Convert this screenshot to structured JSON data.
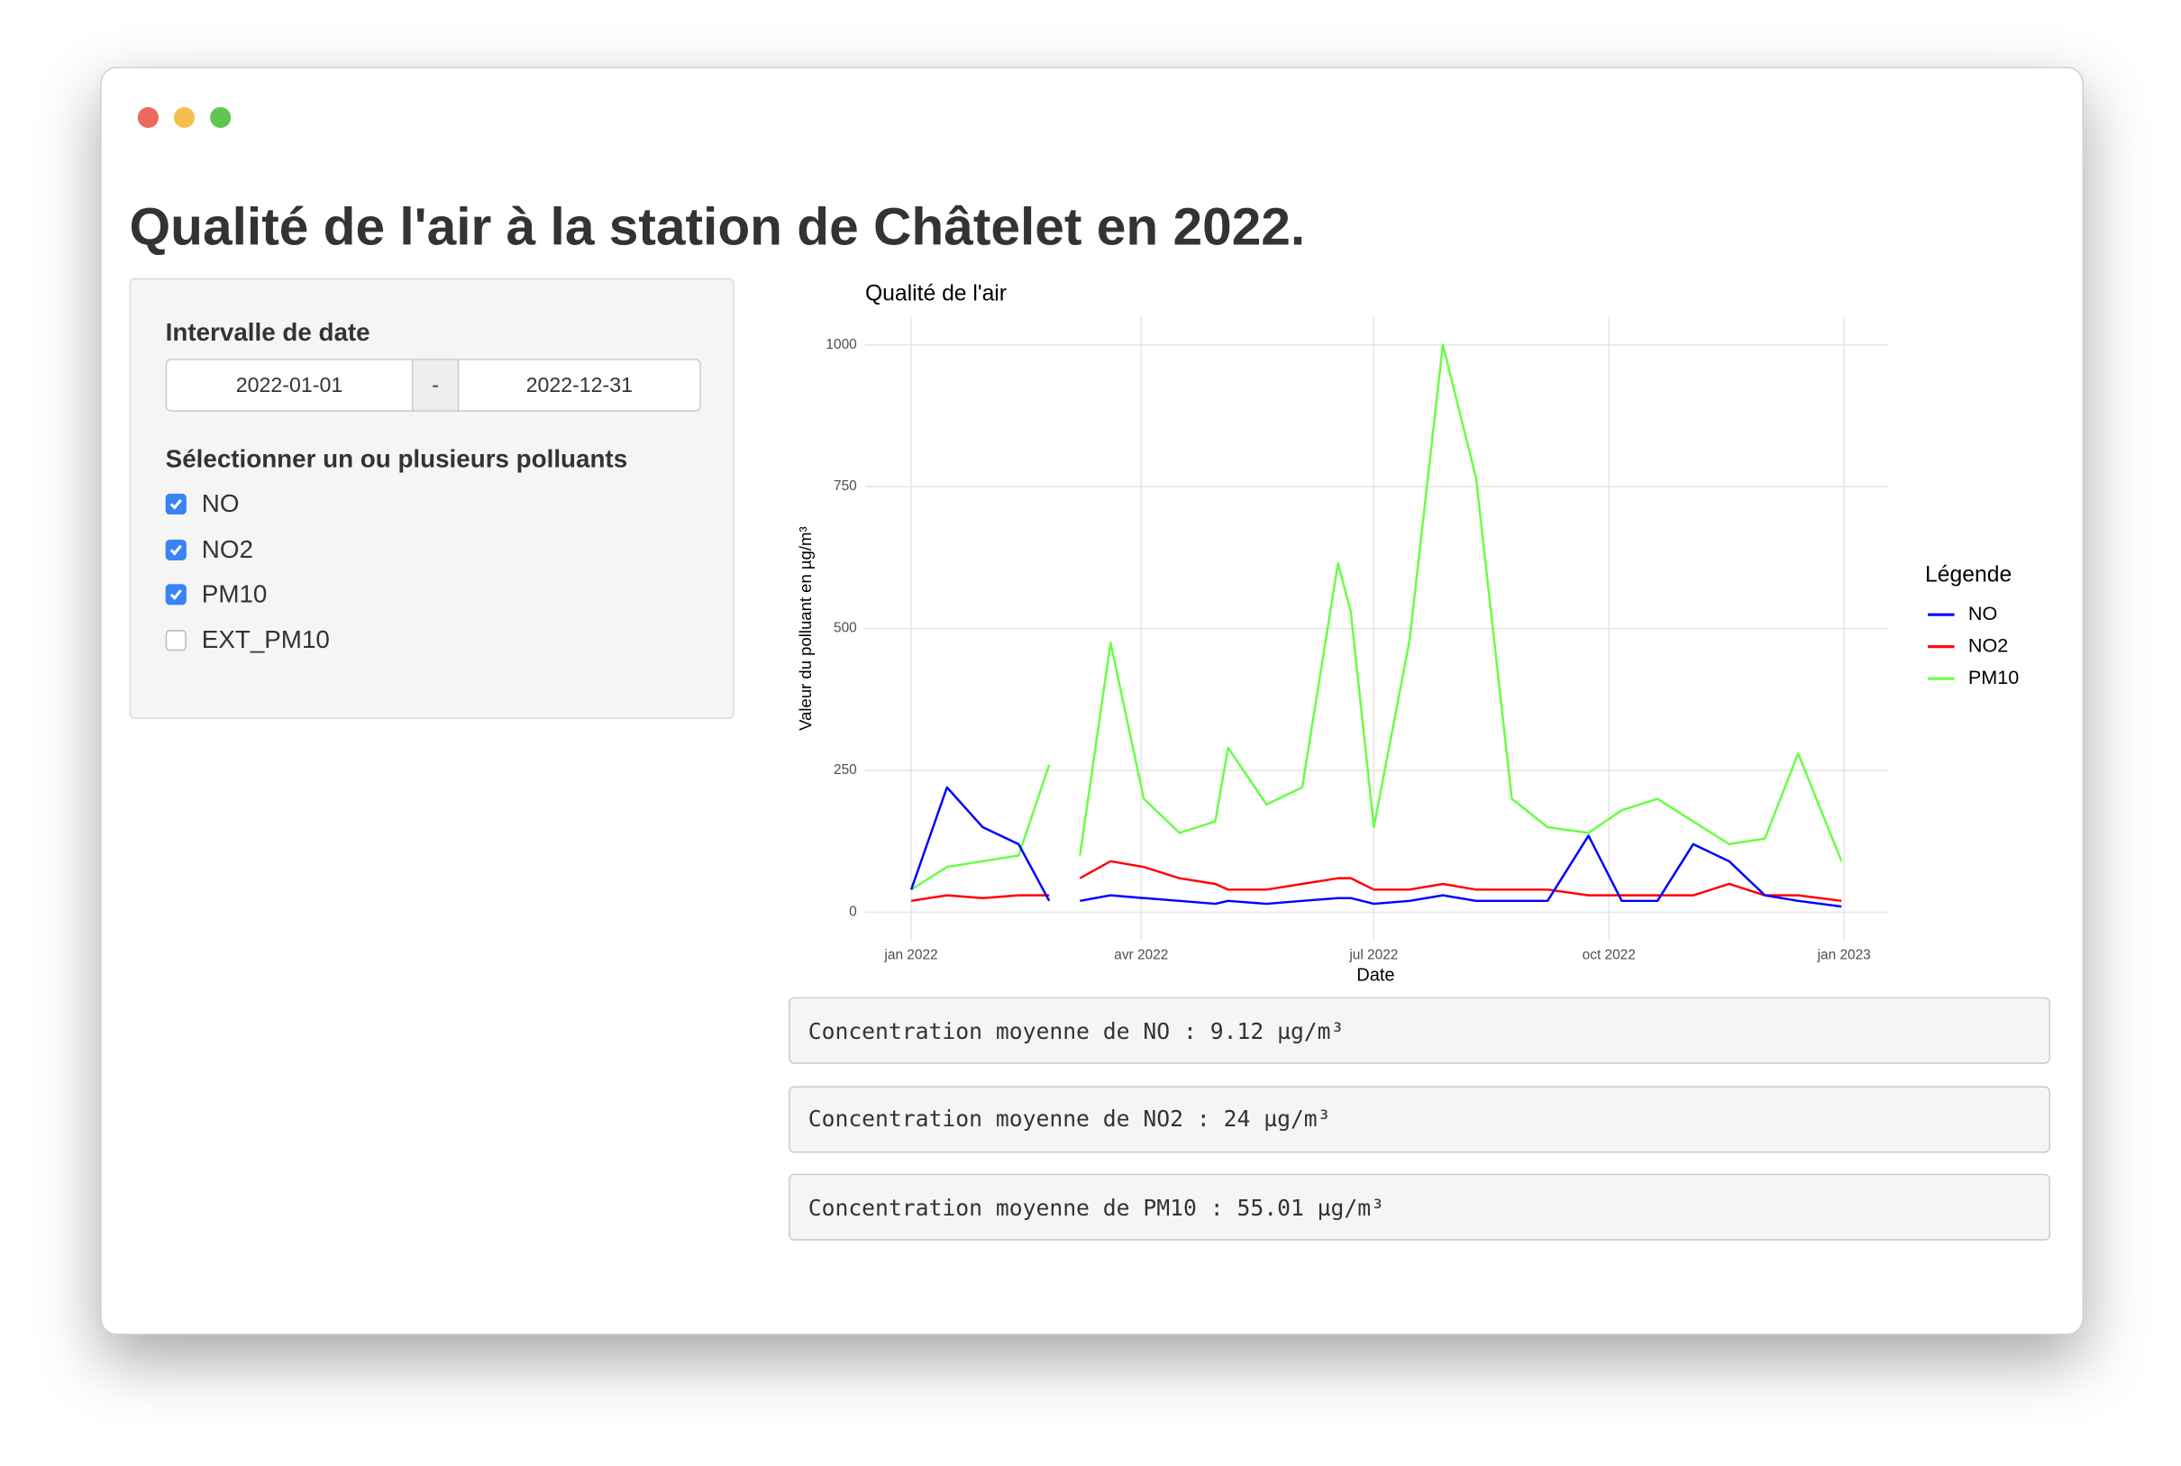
{
  "header": {
    "title": "Qualité de l'air à la station de Châtelet en 2022."
  },
  "sidebar": {
    "date_label": "Intervalle de date",
    "date_start": "2022-01-01",
    "date_separator": "-",
    "date_end": "2022-12-31",
    "pollutant_label": "Sélectionner un ou plusieurs polluants",
    "pollutants": [
      {
        "label": "NO",
        "checked": true
      },
      {
        "label": "NO2",
        "checked": true
      },
      {
        "label": "PM10",
        "checked": true
      },
      {
        "label": "EXT_PM10",
        "checked": false
      }
    ]
  },
  "outputs": [
    "Concentration moyenne de NO : 9.12 µg/m³",
    "Concentration moyenne de NO2 : 24 µg/m³",
    "Concentration moyenne de PM10 : 55.01 µg/m³"
  ],
  "chart_data": {
    "type": "line",
    "title": "Qualité de l'air",
    "x_label": "Date",
    "y_label": "Valeur du polluant en µg/m³",
    "legend_title": "Légende",
    "legend": "right",
    "grid": true,
    "x": [
      "2022-01-01",
      "2022-01-15",
      "2022-01-29",
      "2022-02-12",
      "2022-02-24",
      "2022-03-01",
      "2022-03-08",
      "2022-03-20",
      "2022-04-02",
      "2022-04-16",
      "2022-04-30",
      "2022-05-05",
      "2022-05-20",
      "2022-06-03",
      "2022-06-17",
      "2022-06-22",
      "2022-07-01",
      "2022-07-15",
      "2022-07-28",
      "2022-08-10",
      "2022-08-24",
      "2022-09-07",
      "2022-09-23",
      "2022-10-06",
      "2022-10-20",
      "2022-11-03",
      "2022-11-17",
      "2022-12-01",
      "2022-12-14",
      "2022-12-31"
    ],
    "series": [
      {
        "name": "PM10",
        "color": "#66ff44",
        "values": [
          40,
          80,
          90,
          100,
          260,
          null,
          100,
          475,
          200,
          140,
          160,
          290,
          190,
          220,
          615,
          530,
          150,
          480,
          1000,
          765,
          200,
          150,
          140,
          180,
          200,
          160,
          120,
          130,
          280,
          90
        ]
      },
      {
        "name": "NO2",
        "color": "#ff0000",
        "values": [
          20,
          30,
          25,
          30,
          30,
          null,
          60,
          90,
          80,
          60,
          50,
          40,
          40,
          50,
          60,
          60,
          40,
          40,
          50,
          40,
          40,
          40,
          30,
          30,
          30,
          30,
          50,
          30,
          30,
          20
        ]
      },
      {
        "name": "NO",
        "color": "#0000ff",
        "values": [
          40,
          220,
          150,
          120,
          20,
          null,
          20,
          30,
          25,
          20,
          15,
          20,
          15,
          20,
          25,
          25,
          15,
          20,
          30,
          20,
          20,
          20,
          135,
          20,
          20,
          120,
          90,
          30,
          20,
          10
        ]
      }
    ],
    "legend_order": [
      "NO",
      "NO2",
      "PM10"
    ],
    "xlim": [
      "2021-12-14",
      "2023-01-18"
    ],
    "xticks": [
      {
        "value": "2022-01-01",
        "label": "jan 2022"
      },
      {
        "value": "2022-04-01",
        "label": "avr 2022"
      },
      {
        "value": "2022-07-01",
        "label": "jul 2022"
      },
      {
        "value": "2022-10-01",
        "label": "oct 2022"
      },
      {
        "value": "2023-01-01",
        "label": "jan 2023"
      }
    ],
    "ylim": [
      -49,
      1049
    ],
    "yticks": [
      0,
      250,
      500,
      750,
      1000
    ]
  }
}
